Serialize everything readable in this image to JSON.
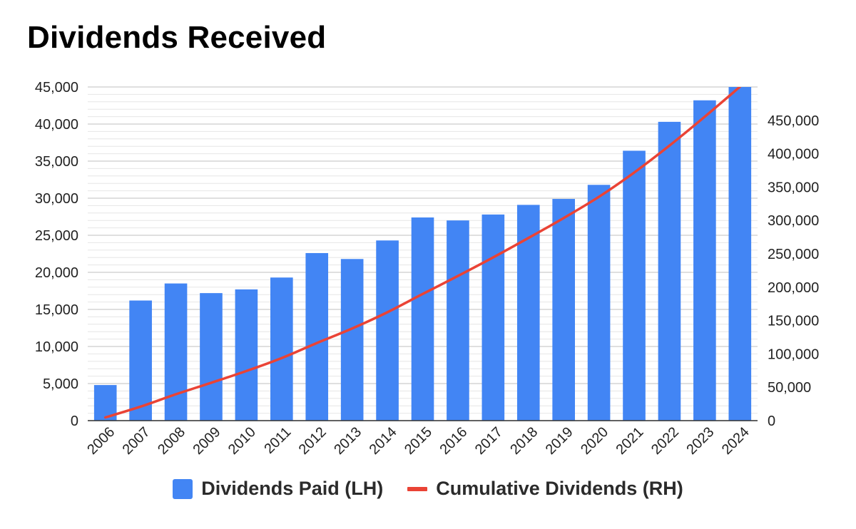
{
  "title": "Dividends Received",
  "colors": {
    "bar": "#4285f4",
    "line": "#ea4335",
    "grid": "#cccccc",
    "gridMinor": "#e6e6e6"
  },
  "chart_data": {
    "type": "bar",
    "title": "Dividends Received",
    "categories": [
      "2006",
      "2007",
      "2008",
      "2009",
      "2010",
      "2011",
      "2012",
      "2013",
      "2014",
      "2015",
      "2016",
      "2017",
      "2018",
      "2019",
      "2020",
      "2021",
      "2022",
      "2023",
      "2024"
    ],
    "series": [
      {
        "name": "Dividends Paid (LH)",
        "type": "bar",
        "axis": "left",
        "values": [
          4800,
          16200,
          18500,
          17200,
          17700,
          19300,
          22600,
          21800,
          24300,
          27400,
          27000,
          27800,
          29100,
          29900,
          31800,
          36400,
          40300,
          43200,
          45000
        ]
      },
      {
        "name": "Cumulative Dividends (RH)",
        "type": "line",
        "axis": "right",
        "values": [
          4800,
          21000,
          39500,
          56700,
          74400,
          93700,
          116300,
          138100,
          162400,
          189800,
          216800,
          244600,
          273700,
          303600,
          335400,
          371800,
          412100,
          455300,
          500300
        ]
      }
    ],
    "left_axis": {
      "ylim": [
        0,
        45000
      ],
      "ticks": [
        0,
        5000,
        10000,
        15000,
        20000,
        25000,
        30000,
        35000,
        40000,
        45000
      ],
      "tick_labels": [
        "0",
        "5,000",
        "10,000",
        "15,000",
        "20,000",
        "25,000",
        "30,000",
        "35,000",
        "40,000",
        "45,000"
      ]
    },
    "right_axis": {
      "ylim": [
        0,
        500000
      ],
      "ticks": [
        0,
        50000,
        100000,
        150000,
        200000,
        250000,
        300000,
        350000,
        400000,
        450000
      ],
      "tick_labels": [
        "0",
        "50,000",
        "100,000",
        "150,000",
        "200,000",
        "250,000",
        "300,000",
        "350,000",
        "400,000",
        "450,000"
      ]
    },
    "grid": true,
    "legend_position": "bottom"
  },
  "legend": {
    "bar_label": "Dividends Paid (LH)",
    "line_label": "Cumulative Dividends (RH)"
  }
}
